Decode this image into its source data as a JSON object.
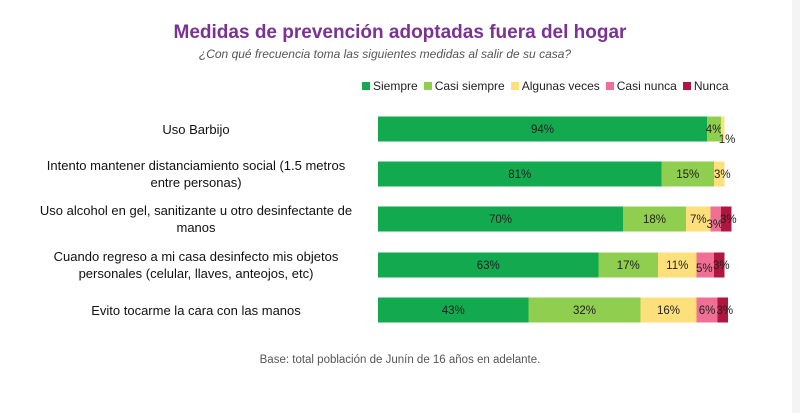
{
  "chart_data": {
    "type": "bar",
    "orientation": "horizontal",
    "stacked": true,
    "title": "Medidas de prevención adoptadas fuera del hogar",
    "subtitle": "¿Con qué frecuencia toma las siguientes medidas al salir de su casa?",
    "categories": [
      "Uso Barbijo",
      "Intento mantener distanciamiento social (1.5 metros entre personas)",
      "Uso alcohol en gel, sanitizante u otro desinfectante de manos",
      "Cuando regreso a mi casa desinfecto mis objetos personales (celular, llaves, anteojos, etc)",
      "Evito tocarme la cara con las manos"
    ],
    "series": [
      {
        "name": "Siempre",
        "color": "#12a94f",
        "values": [
          94,
          81,
          70,
          63,
          43
        ]
      },
      {
        "name": "Casi siempre",
        "color": "#8fce4f",
        "values": [
          4,
          15,
          18,
          17,
          32
        ]
      },
      {
        "name": "Algunas  veces",
        "color": "#fde07c",
        "values": [
          1,
          3,
          7,
          11,
          16
        ]
      },
      {
        "name": "Casi nunca",
        "color": "#ef6f95",
        "values": [
          0,
          0,
          3,
          5,
          6
        ]
      },
      {
        "name": "Nunca",
        "color": "#b0163f",
        "values": [
          0,
          0,
          3,
          3,
          3
        ]
      }
    ],
    "legend_position": "top",
    "grid": false,
    "xlim": [
      0,
      100
    ],
    "value_suffix": "%"
  },
  "category_lines": [
    [
      "Uso Barbijo"
    ],
    [
      "Intento mantener distanciamiento social (1.5 metros",
      "entre personas)"
    ],
    [
      "Uso alcohol en gel, sanitizante u otro desinfectante de",
      "manos"
    ],
    [
      "Cuando regreso a mi casa desinfecto mis objetos",
      "personales (celular, llaves, anteojos, etc)"
    ],
    [
      "Evito tocarme la cara con las manos"
    ]
  ],
  "footnote": "Base: total población de Junín de 16 años en adelante."
}
